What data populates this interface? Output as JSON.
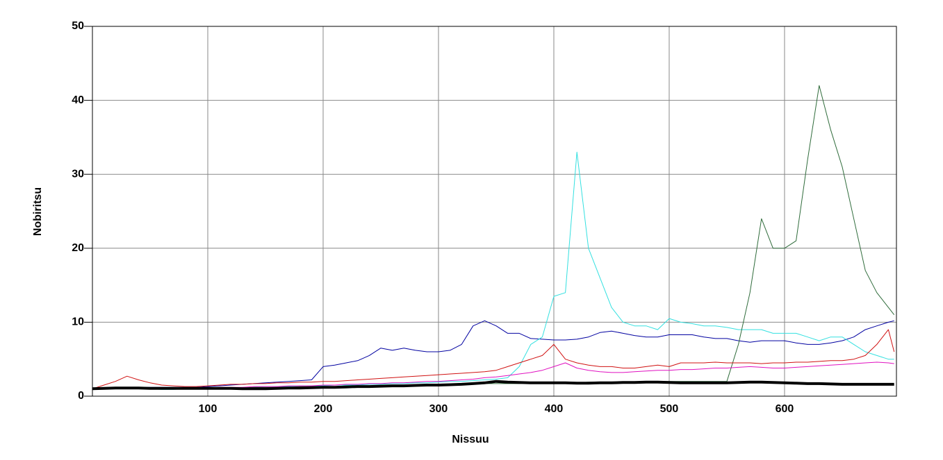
{
  "chart_data": {
    "type": "line",
    "xlabel": "Nissuu",
    "ylabel": "Nobiritsu",
    "xlim": [
      0,
      697
    ],
    "ylim": [
      0,
      50
    ],
    "xticks": [
      100,
      200,
      300,
      400,
      500,
      600
    ],
    "yticks": [
      0,
      10,
      20,
      30,
      40,
      50
    ],
    "grid": true,
    "x": [
      0,
      10,
      20,
      30,
      40,
      50,
      60,
      70,
      80,
      90,
      100,
      110,
      120,
      130,
      140,
      150,
      160,
      170,
      180,
      190,
      200,
      210,
      220,
      230,
      240,
      250,
      260,
      270,
      280,
      290,
      300,
      310,
      320,
      330,
      340,
      350,
      360,
      370,
      380,
      390,
      400,
      410,
      420,
      430,
      440,
      450,
      460,
      470,
      480,
      490,
      500,
      510,
      520,
      530,
      540,
      550,
      560,
      570,
      580,
      590,
      600,
      610,
      620,
      630,
      640,
      650,
      660,
      670,
      680,
      690,
      695
    ],
    "series": [
      {
        "color": "#0000a0",
        "values": [
          1,
          1.1,
          1.2,
          1.2,
          1.2,
          1.2,
          1.2,
          1.2,
          1.2,
          1.2,
          1.3,
          1.4,
          1.5,
          1.6,
          1.7,
          1.8,
          1.9,
          2,
          2.1,
          2.2,
          4,
          4.2,
          4.5,
          4.8,
          5.5,
          6.5,
          6.2,
          6.5,
          6.2,
          6,
          6,
          6.2,
          7,
          9.5,
          10.2,
          9.5,
          8.5,
          8.5,
          7.8,
          7.7,
          7.6,
          7.6,
          7.7,
          8,
          8.6,
          8.8,
          8.5,
          8.2,
          8,
          8,
          8.3,
          8.3,
          8.3,
          8,
          7.8,
          7.8,
          7.5,
          7.3,
          7.5,
          7.5,
          7.5,
          7.2,
          7,
          7,
          7.2,
          7.5,
          8,
          9,
          9.5,
          10,
          10.2
        ]
      },
      {
        "color": "#33e0e0",
        "values": [
          1,
          1.1,
          1.1,
          1.2,
          1.1,
          1,
          0.9,
          0.9,
          1,
          1,
          1,
          1.1,
          1.1,
          1.2,
          1.2,
          1.3,
          1.3,
          1.3,
          1.4,
          1.4,
          1.4,
          1.5,
          1.5,
          1.5,
          1.6,
          1.6,
          1.7,
          1.7,
          1.8,
          1.8,
          1.9,
          2,
          2,
          2.1,
          2.2,
          2.3,
          2.5,
          4,
          7,
          8,
          13.5,
          14,
          33,
          20,
          16,
          12,
          10,
          9.5,
          9.5,
          9,
          10.5,
          10,
          9.8,
          9.5,
          9.5,
          9.3,
          9,
          9,
          9,
          8.5,
          8.5,
          8.5,
          8,
          7.5,
          8,
          8,
          7,
          6,
          5.5,
          5,
          5
        ]
      },
      {
        "color": "#2e6b3a",
        "values": [
          1,
          1,
          1,
          1,
          1,
          1,
          1,
          1,
          1,
          1,
          1.1,
          1.1,
          1.1,
          1.1,
          1.2,
          1.2,
          1.2,
          1.2,
          1.3,
          1.3,
          1.3,
          1.3,
          1.4,
          1.4,
          1.4,
          1.4,
          1.5,
          1.5,
          1.5,
          1.5,
          1.6,
          1.6,
          1.6,
          1.6,
          1.7,
          1.7,
          1.7,
          1.7,
          1.8,
          1.8,
          1.8,
          1.8,
          1.8,
          1.9,
          1.9,
          1.9,
          1.9,
          1.9,
          2,
          2,
          2,
          2,
          2,
          2,
          2,
          2,
          7,
          14,
          24,
          20,
          20,
          21,
          32,
          42,
          36,
          31,
          24,
          17,
          14,
          12,
          11
        ]
      },
      {
        "color": "#d01010",
        "values": [
          1,
          1.5,
          2,
          2.7,
          2.2,
          1.8,
          1.5,
          1.4,
          1.3,
          1.3,
          1.4,
          1.5,
          1.6,
          1.6,
          1.7,
          1.7,
          1.8,
          1.8,
          1.9,
          1.9,
          2,
          2,
          2.1,
          2.2,
          2.3,
          2.4,
          2.5,
          2.6,
          2.7,
          2.8,
          2.9,
          3,
          3.1,
          3.2,
          3.3,
          3.5,
          4,
          4.5,
          5,
          5.5,
          7,
          5,
          4.5,
          4.2,
          4,
          4,
          3.8,
          3.8,
          4,
          4.2,
          4,
          4.5,
          4.5,
          4.5,
          4.6,
          4.5,
          4.5,
          4.5,
          4.4,
          4.5,
          4.5,
          4.6,
          4.6,
          4.7,
          4.8,
          4.8,
          5,
          5.5,
          7,
          9,
          6
        ]
      },
      {
        "color": "#e010c0",
        "values": [
          1,
          1,
          1,
          1,
          1,
          1,
          1,
          1.1,
          1.1,
          1.1,
          1.1,
          1.2,
          1.2,
          1.2,
          1.3,
          1.3,
          1.3,
          1.4,
          1.4,
          1.4,
          1.5,
          1.5,
          1.6,
          1.6,
          1.7,
          1.7,
          1.8,
          1.8,
          1.9,
          2,
          2,
          2.1,
          2.2,
          2.3,
          2.5,
          2.6,
          2.8,
          3,
          3.2,
          3.5,
          4,
          4.5,
          3.8,
          3.5,
          3.3,
          3.2,
          3.2,
          3.3,
          3.4,
          3.5,
          3.5,
          3.6,
          3.6,
          3.7,
          3.8,
          3.8,
          3.9,
          4,
          3.9,
          3.8,
          3.8,
          3.9,
          4,
          4.1,
          4.2,
          4.3,
          4.4,
          4.5,
          4.6,
          4.5,
          4.4
        ]
      },
      {
        "color": "#000000",
        "values": [
          1,
          1.05,
          1.1,
          1.1,
          1.1,
          1.05,
          1.05,
          1.05,
          1.05,
          1.05,
          1.05,
          1.05,
          1.05,
          1.0,
          1.0,
          1.0,
          1.05,
          1.1,
          1.1,
          1.15,
          1.2,
          1.2,
          1.25,
          1.3,
          1.3,
          1.35,
          1.4,
          1.4,
          1.45,
          1.5,
          1.5,
          1.55,
          1.6,
          1.7,
          1.8,
          2,
          1.9,
          1.85,
          1.8,
          1.8,
          1.8,
          1.8,
          1.75,
          1.75,
          1.8,
          1.8,
          1.85,
          1.85,
          1.9,
          1.9,
          1.85,
          1.8,
          1.8,
          1.8,
          1.8,
          1.8,
          1.85,
          1.9,
          1.9,
          1.85,
          1.8,
          1.75,
          1.7,
          1.7,
          1.65,
          1.6,
          1.6,
          1.6,
          1.6,
          1.6,
          1.6
        ]
      }
    ]
  }
}
